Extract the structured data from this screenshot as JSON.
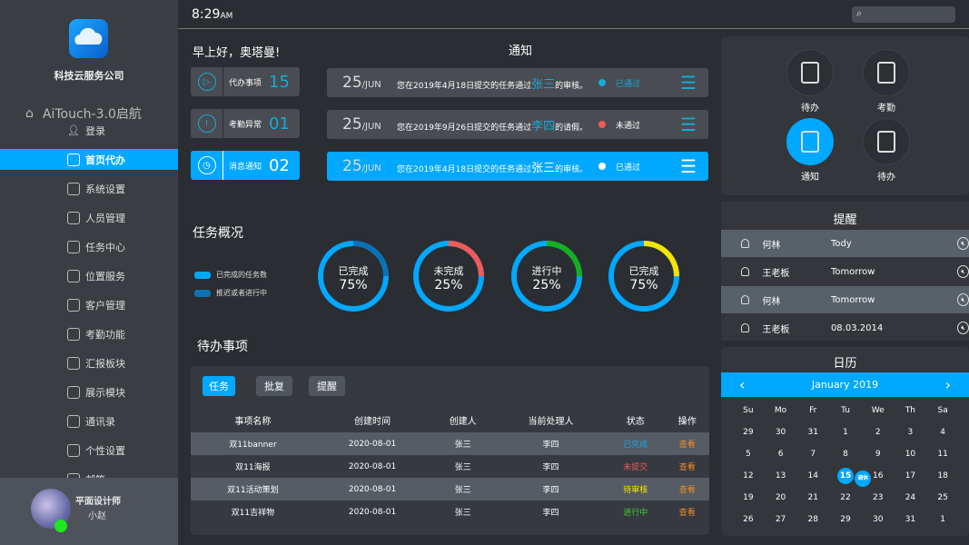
{
  "sidebar": {
    "company": "科技云服务公司",
    "brand": "AiTouch-3.0启航",
    "login": "登录",
    "items": [
      {
        "label": "首页代办",
        "icon": "todo-icon",
        "active": true
      },
      {
        "label": "系统设置",
        "icon": "gear-icon"
      },
      {
        "label": "人员管理",
        "icon": "org-chart-icon"
      },
      {
        "label": "任务中心",
        "icon": "checkbox-icon"
      },
      {
        "label": "位置服务",
        "icon": "location-icon"
      },
      {
        "label": "客户管理",
        "icon": "users-icon"
      },
      {
        "label": "考勤功能",
        "icon": "fingerprint-icon"
      },
      {
        "label": "汇报板块",
        "icon": "presenter-icon"
      },
      {
        "label": "展示模块",
        "icon": "monitor-icon"
      },
      {
        "label": "通讯录",
        "icon": "contacts-icon"
      },
      {
        "label": "个性设置",
        "icon": "shirt-icon"
      },
      {
        "label": "邮箱",
        "icon": "mail-icon"
      }
    ],
    "user": {
      "role": "平面设计师",
      "name": "小赵",
      "status_color": "#1de81d"
    }
  },
  "topbar": {
    "time": "8:29",
    "ampm": "AM"
  },
  "greeting": "早上好，奥塔曼!",
  "notice_title": "通知",
  "stats": [
    {
      "label": "代办事项",
      "value": "15",
      "icon": "play-icon"
    },
    {
      "label": "考勤异常",
      "value": "01",
      "icon": "alert-icon"
    },
    {
      "label": "消息通知",
      "value": "02",
      "icon": "clock-icon",
      "active": true
    }
  ],
  "notices": [
    {
      "day": "25",
      "month": "/JUN",
      "pre": "您在2019年4月18日提交的任务通过",
      "who": "张三",
      "post": "的审核。",
      "status": "已通过",
      "dot": "#19a9d6",
      "status_color": "#19a9d6"
    },
    {
      "day": "25",
      "month": "/JUN",
      "pre": "您在2019年9月26日提交的任务通过",
      "who": "李四",
      "post": "的请假。",
      "status": "未通过",
      "dot": "#f05a5a",
      "status_color": "#ffffff"
    },
    {
      "day": "25",
      "month": "/JUN",
      "pre": "您在2019年4月18日提交的任务通过",
      "who": "张三",
      "post": "的审核。",
      "status": "已通过",
      "dot": "#ffffff",
      "status_color": "#ffffff",
      "active": true
    }
  ],
  "overview": {
    "title": "任务概况",
    "legend": [
      {
        "label": "已完成的任务数",
        "color": "#00a8ff"
      },
      {
        "label": "推迟或者进行中",
        "color": "#0a72b5"
      }
    ],
    "donuts": [
      {
        "label": "已完成",
        "percent": 75,
        "accent": "#0a72b5"
      },
      {
        "label": "未完成",
        "percent": 25,
        "accent": "#f05a5a"
      },
      {
        "label": "进行中",
        "percent": 25,
        "accent": "#14b01e"
      },
      {
        "label": "已完成",
        "percent": 75,
        "accent": "#f5e400"
      }
    ]
  },
  "todo": {
    "title": "待办事项",
    "tabs": [
      "任务",
      "批复",
      "提醒"
    ],
    "columns": [
      "事项名称",
      "创建时间",
      "创建人",
      "当前处理人",
      "状态",
      "操作"
    ],
    "rows": [
      [
        "双11banner",
        "2020-08-01",
        "张三",
        "李四",
        "已完成",
        "查看"
      ],
      [
        "双11海报",
        "2020-08-01",
        "张三",
        "李四",
        "未提交",
        "查看"
      ],
      [
        "双11活动策划",
        "2020-08-01",
        "张三",
        "李四",
        "待审核",
        "查看"
      ],
      [
        "双11吉祥物",
        "2020-08-01",
        "张三",
        "李四",
        "进行中",
        "查看"
      ]
    ],
    "status_colors": [
      "#1aa3e8",
      "#f05a5a",
      "#f5e400",
      "#3ad12a"
    ],
    "action_color": "#f08c2a"
  },
  "quick": [
    {
      "label": "待办",
      "icon": "todo-alert-icon"
    },
    {
      "label": "考勤",
      "icon": "fingerprint-icon"
    },
    {
      "label": "通知",
      "icon": "notice-icon",
      "active": true
    },
    {
      "label": "待办",
      "icon": "todo-alert-icon"
    }
  ],
  "reminders": {
    "title": "提醒",
    "items": [
      {
        "name": "何林",
        "when": "Tody"
      },
      {
        "name": "王老板",
        "when": "Tomorrow"
      },
      {
        "name": "何林",
        "when": "Tomorrow"
      },
      {
        "name": "王老板",
        "when": "08.03.2014"
      }
    ]
  },
  "calendar": {
    "title": "日历",
    "month": "January 2019",
    "weekdays": [
      "Su",
      "Mo",
      "Fr",
      "Tu",
      "We",
      "Th",
      "Sa"
    ],
    "days": [
      "29",
      "30",
      "31",
      "1",
      "2",
      "3",
      "4",
      "5",
      "6",
      "7",
      "8",
      "9",
      "10",
      "11",
      "12",
      "13",
      "14",
      "15",
      "16",
      "17",
      "18",
      "19",
      "20",
      "21",
      "22",
      "23",
      "24",
      "25",
      "26",
      "27",
      "28",
      "29",
      "30",
      "31",
      "1"
    ],
    "selected": "15",
    "tag": "调休"
  },
  "accent": "#00a8ff"
}
